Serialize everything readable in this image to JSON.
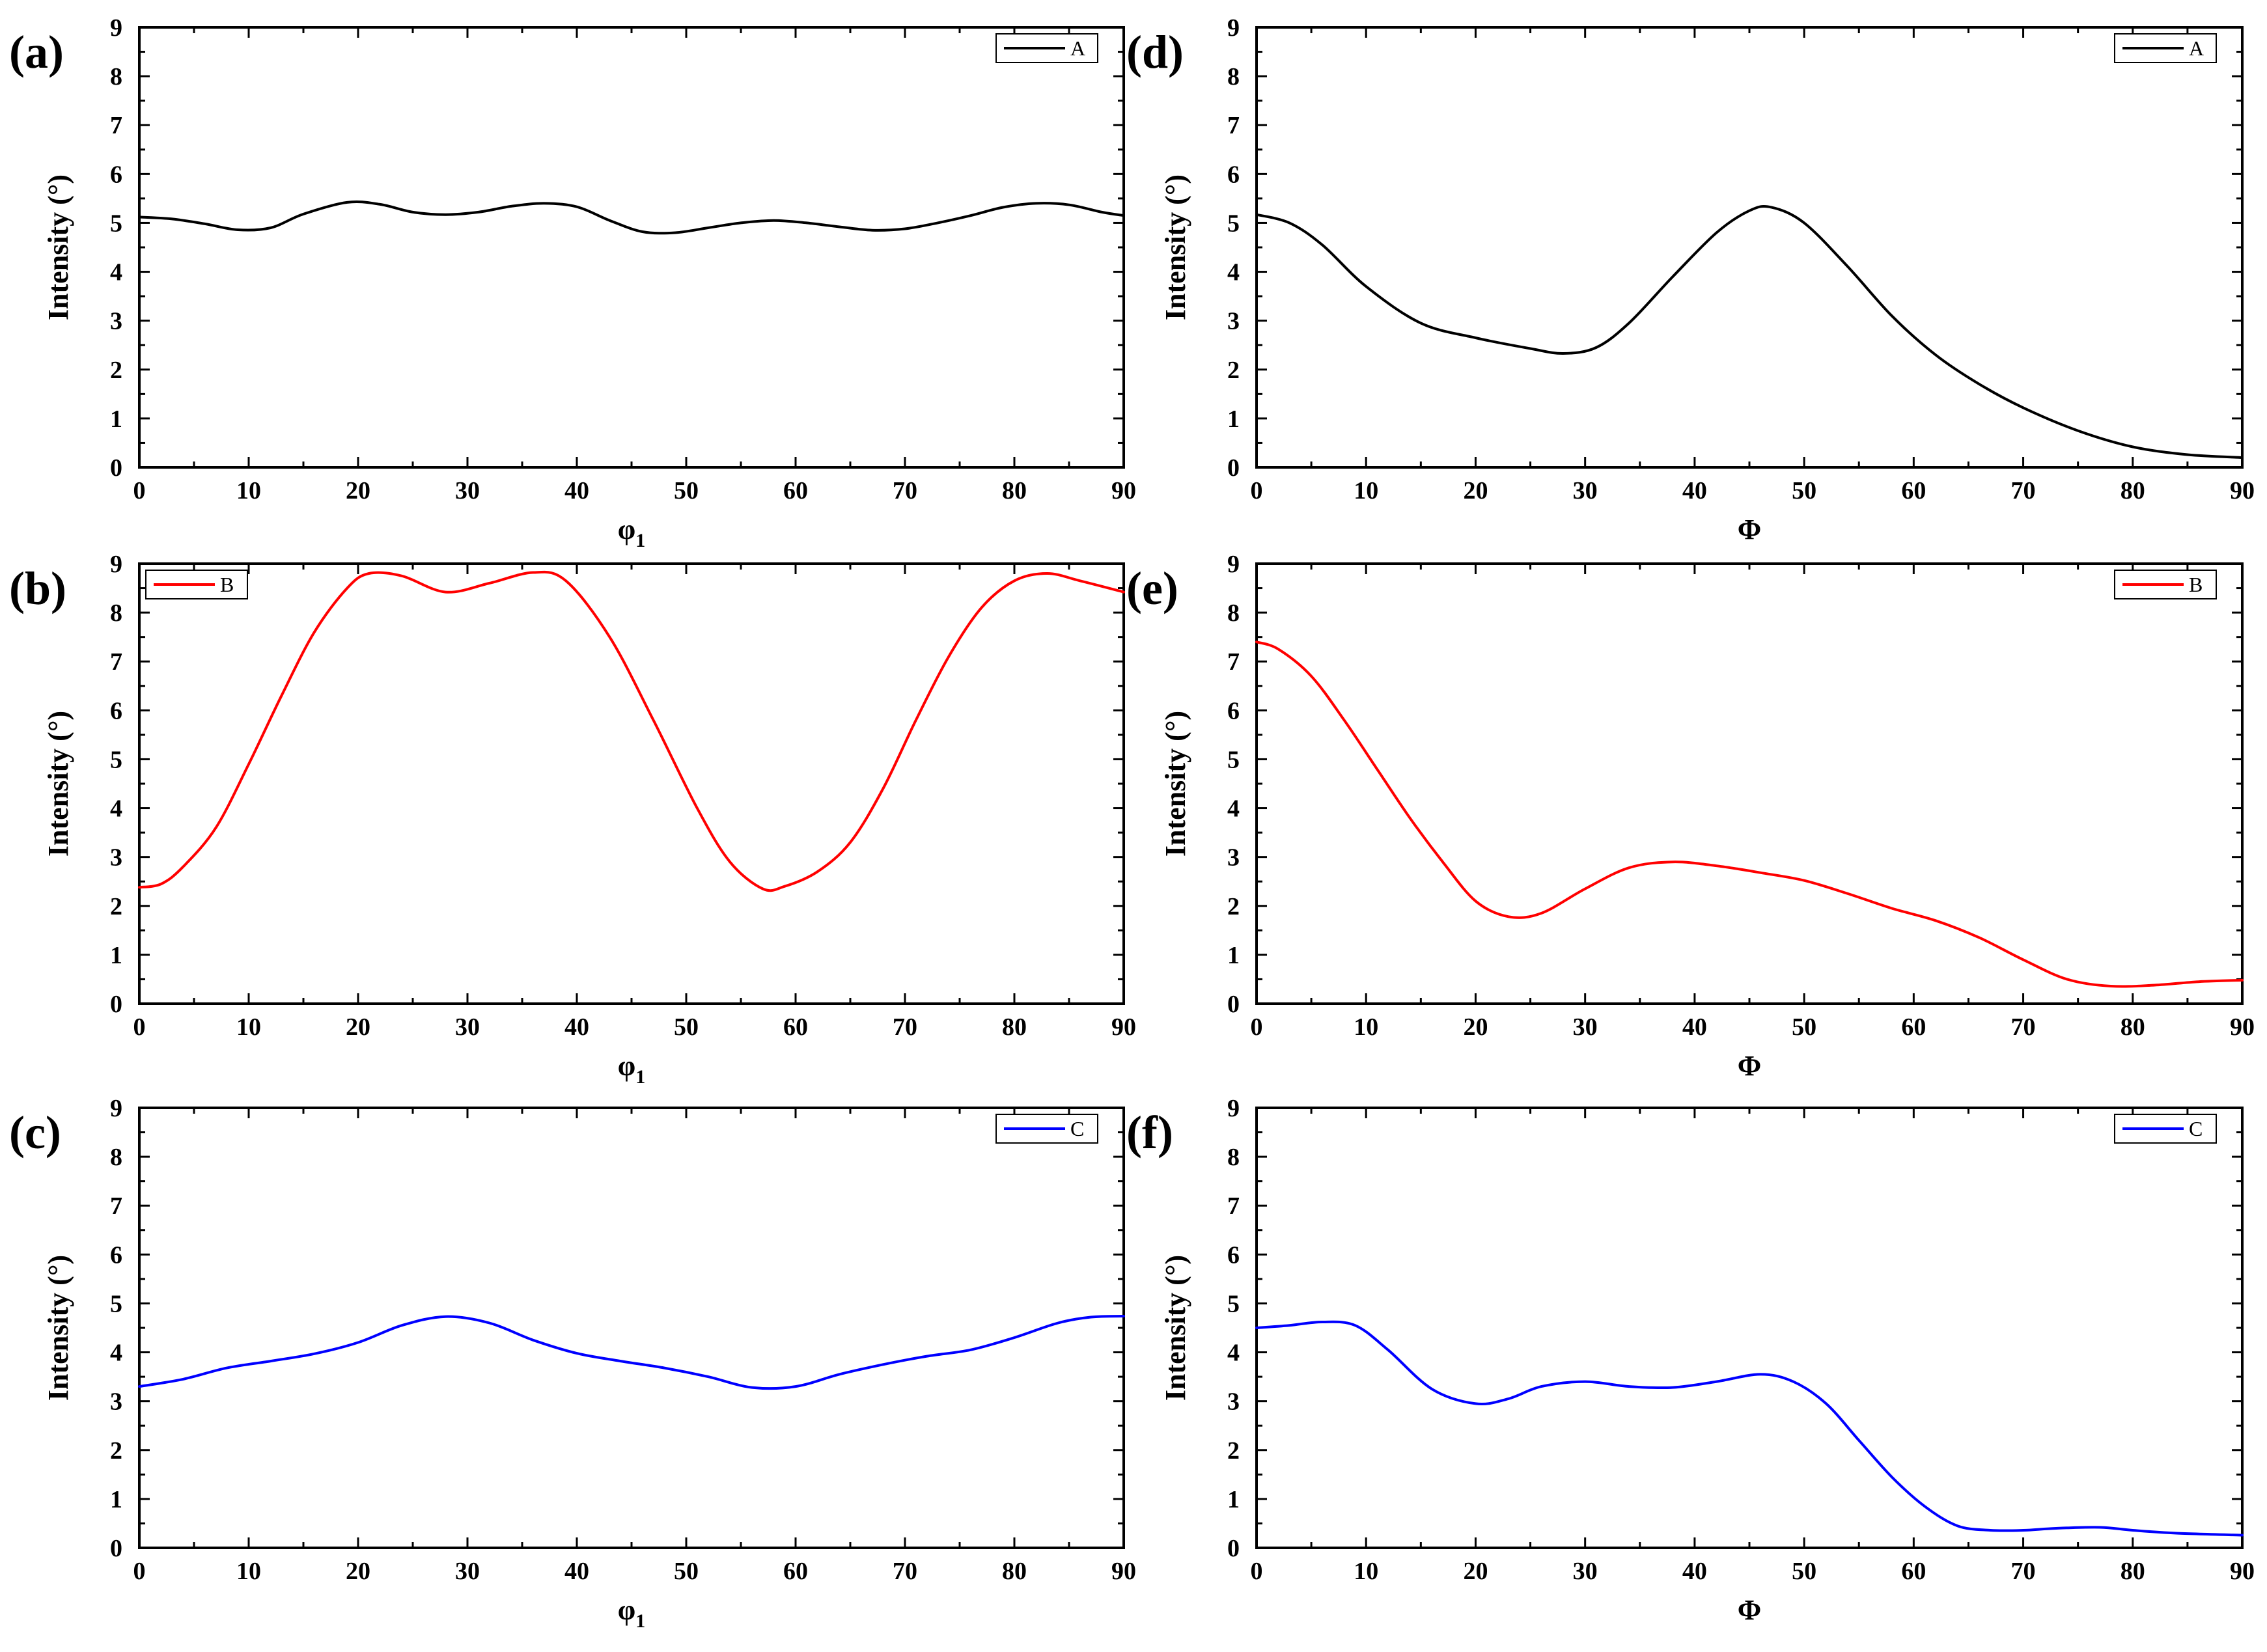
{
  "chart_data": [
    {
      "id": "a",
      "panel_label": "(a)",
      "type": "line",
      "xlabel": "φ",
      "xlabel_sub": "1",
      "ylabel": "Intensity (°)",
      "xlim": [
        0,
        90
      ],
      "ylim": [
        0,
        9
      ],
      "xticks": [
        "0",
        "10",
        "20",
        "30",
        "40",
        "50",
        "60",
        "70",
        "80",
        "90"
      ],
      "yticks": [
        "0",
        "1",
        "2",
        "3",
        "4",
        "5",
        "6",
        "7",
        "8",
        "9"
      ],
      "legend_position": "top-right",
      "series": [
        {
          "name": "A",
          "color": "#000000",
          "x": [
            0,
            3,
            6,
            9,
            12,
            15,
            19,
            22,
            25,
            28,
            31,
            34,
            37,
            40,
            43,
            46,
            49,
            52,
            55,
            58,
            61,
            64,
            67,
            70,
            73,
            76,
            79,
            82,
            85,
            88,
            90
          ],
          "y": [
            5.12,
            5.08,
            4.98,
            4.86,
            4.9,
            5.18,
            5.42,
            5.38,
            5.22,
            5.17,
            5.22,
            5.34,
            5.4,
            5.33,
            5.05,
            4.82,
            4.8,
            4.9,
            5.0,
            5.05,
            5.0,
            4.92,
            4.85,
            4.88,
            5.0,
            5.15,
            5.32,
            5.4,
            5.37,
            5.22,
            5.15
          ]
        }
      ]
    },
    {
      "id": "b",
      "panel_label": "(b)",
      "type": "line",
      "xlabel": "φ",
      "xlabel_sub": "1",
      "ylabel": "Intensity (°)",
      "xlim": [
        0,
        90
      ],
      "ylim": [
        0,
        9
      ],
      "xticks": [
        "0",
        "10",
        "20",
        "30",
        "40",
        "50",
        "60",
        "70",
        "80",
        "90"
      ],
      "yticks": [
        "0",
        "1",
        "2",
        "3",
        "4",
        "5",
        "6",
        "7",
        "8",
        "9"
      ],
      "legend_position": "top-left",
      "series": [
        {
          "name": "B",
          "color": "#ff0000",
          "x": [
            0,
            2,
            4,
            7,
            10,
            13,
            16,
            19,
            21,
            24,
            28,
            32,
            36,
            39,
            43,
            47,
            51,
            54,
            57,
            59,
            62,
            65,
            68,
            71,
            74,
            77,
            80,
            83,
            86,
            90
          ],
          "y": [
            2.38,
            2.45,
            2.8,
            3.6,
            4.9,
            6.3,
            7.6,
            8.5,
            8.8,
            8.75,
            8.42,
            8.6,
            8.82,
            8.65,
            7.5,
            5.8,
            4.0,
            2.9,
            2.35,
            2.4,
            2.7,
            3.3,
            4.4,
            5.8,
            7.1,
            8.1,
            8.65,
            8.8,
            8.65,
            8.42
          ]
        }
      ]
    },
    {
      "id": "c",
      "panel_label": "(c)",
      "type": "line",
      "xlabel": "φ",
      "xlabel_sub": "1",
      "ylabel": "Intensity (°)",
      "xlim": [
        0,
        90
      ],
      "ylim": [
        0,
        9
      ],
      "xticks": [
        "0",
        "10",
        "20",
        "30",
        "40",
        "50",
        "60",
        "70",
        "80",
        "90"
      ],
      "yticks": [
        "0",
        "1",
        "2",
        "3",
        "4",
        "5",
        "6",
        "7",
        "8",
        "9"
      ],
      "legend_position": "top-right",
      "series": [
        {
          "name": "C",
          "color": "#0000ff",
          "x": [
            0,
            4,
            8,
            12,
            16,
            20,
            24,
            28,
            32,
            36,
            40,
            44,
            48,
            52,
            56,
            60,
            64,
            68,
            72,
            76,
            80,
            84,
            87,
            90
          ],
          "y": [
            3.3,
            3.45,
            3.68,
            3.82,
            3.97,
            4.2,
            4.55,
            4.73,
            4.6,
            4.25,
            3.98,
            3.82,
            3.68,
            3.5,
            3.28,
            3.3,
            3.55,
            3.75,
            3.92,
            4.05,
            4.3,
            4.6,
            4.72,
            4.74
          ]
        }
      ]
    },
    {
      "id": "d",
      "panel_label": "(d)",
      "type": "line",
      "xlabel": "Φ",
      "xlabel_sub": "",
      "ylabel": "Intensity (°)",
      "xlim": [
        0,
        90
      ],
      "ylim": [
        0,
        9
      ],
      "xticks": [
        "0",
        "10",
        "20",
        "30",
        "40",
        "50",
        "60",
        "70",
        "80",
        "90"
      ],
      "yticks": [
        "0",
        "1",
        "2",
        "3",
        "4",
        "5",
        "6",
        "7",
        "8",
        "9"
      ],
      "legend_position": "top-right",
      "series": [
        {
          "name": "A",
          "color": "#000000",
          "x": [
            0,
            3,
            6,
            10,
            15,
            20,
            25,
            28,
            31,
            34,
            38,
            42,
            45,
            47,
            50,
            54,
            58,
            62,
            66,
            70,
            75,
            80,
            85,
            90
          ],
          "y": [
            5.17,
            5.0,
            4.55,
            3.7,
            2.95,
            2.65,
            2.43,
            2.33,
            2.45,
            2.95,
            3.9,
            4.8,
            5.25,
            5.32,
            5.0,
            4.1,
            3.1,
            2.3,
            1.7,
            1.22,
            0.75,
            0.42,
            0.26,
            0.2
          ]
        }
      ]
    },
    {
      "id": "e",
      "panel_label": "(e)",
      "type": "line",
      "xlabel": "Φ",
      "xlabel_sub": "",
      "ylabel": "Intensity (°)",
      "xlim": [
        0,
        90
      ],
      "ylim": [
        0,
        9
      ],
      "xticks": [
        "0",
        "10",
        "20",
        "30",
        "40",
        "50",
        "60",
        "70",
        "80",
        "90"
      ],
      "yticks": [
        "0",
        "1",
        "2",
        "3",
        "4",
        "5",
        "6",
        "7",
        "8",
        "9"
      ],
      "legend_position": "top-right",
      "series": [
        {
          "name": "B",
          "color": "#ff0000",
          "x": [
            0,
            2,
            5,
            8,
            11,
            14,
            17,
            20,
            23,
            26,
            30,
            34,
            38,
            42,
            46,
            50,
            54,
            58,
            62,
            66,
            70,
            74,
            78,
            82,
            86,
            90
          ],
          "y": [
            7.4,
            7.25,
            6.7,
            5.8,
            4.8,
            3.8,
            2.9,
            2.1,
            1.78,
            1.85,
            2.35,
            2.78,
            2.9,
            2.82,
            2.68,
            2.52,
            2.25,
            1.95,
            1.7,
            1.35,
            0.9,
            0.5,
            0.36,
            0.38,
            0.45,
            0.48
          ]
        }
      ]
    },
    {
      "id": "f",
      "panel_label": "(f)",
      "type": "line",
      "xlabel": "Φ",
      "xlabel_sub": "",
      "ylabel": "Intensity (°)",
      "xlim": [
        0,
        90
      ],
      "ylim": [
        0,
        9
      ],
      "xticks": [
        "0",
        "10",
        "20",
        "30",
        "40",
        "50",
        "60",
        "70",
        "80",
        "90"
      ],
      "yticks": [
        "0",
        "1",
        "2",
        "3",
        "4",
        "5",
        "6",
        "7",
        "8",
        "9"
      ],
      "legend_position": "top-right",
      "series": [
        {
          "name": "C",
          "color": "#0000ff",
          "x": [
            0,
            3,
            6,
            9,
            12,
            16,
            20,
            23,
            26,
            30,
            34,
            38,
            42,
            46,
            49,
            52,
            55,
            58,
            61,
            64,
            67,
            70,
            73,
            77,
            80,
            84,
            90
          ],
          "y": [
            4.5,
            4.55,
            4.62,
            4.55,
            4.05,
            3.25,
            2.95,
            3.05,
            3.3,
            3.4,
            3.3,
            3.28,
            3.4,
            3.55,
            3.4,
            2.95,
            2.2,
            1.45,
            0.85,
            0.45,
            0.36,
            0.36,
            0.4,
            0.42,
            0.36,
            0.3,
            0.26
          ]
        }
      ]
    }
  ]
}
